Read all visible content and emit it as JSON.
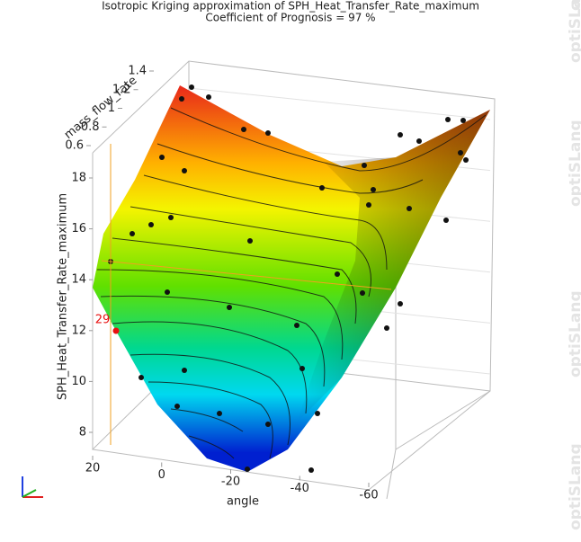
{
  "chart_data": {
    "type": "surface3d",
    "title": "Isotropic Kriging approximation of SPH_Heat_Transfer_Rate_maximum",
    "subtitle": "Coefficient of Prognosis = 97 %",
    "x_label": "angle",
    "y_label": "mass_flow_rate",
    "z_label": "SPH_Heat_Transfer_Rate_maximum",
    "xticks": [
      20,
      0,
      -20,
      -40,
      -60
    ],
    "yticks": [
      0.6,
      0.8,
      1,
      1.2,
      1.4
    ],
    "zticks": [
      8,
      10,
      12,
      14,
      16,
      18
    ],
    "selected_design": 29,
    "watermark": "optiSLang"
  }
}
